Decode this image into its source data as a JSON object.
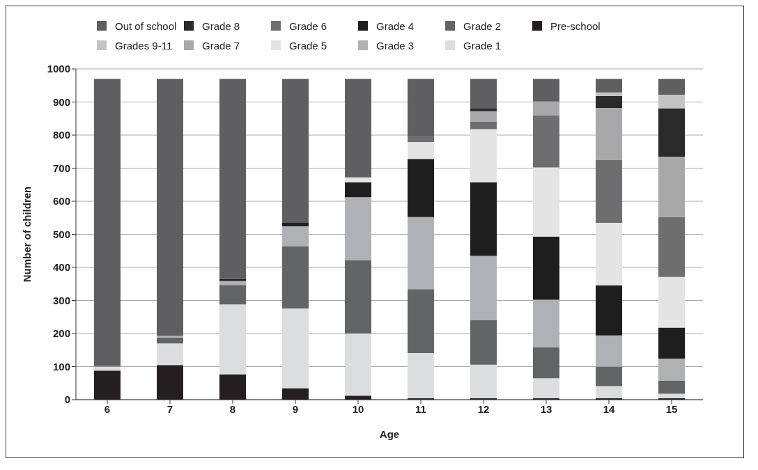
{
  "chart_data": {
    "type": "bar",
    "stacked": true,
    "xlabel": "Age",
    "ylabel": "Number of children",
    "categories": [
      "6",
      "7",
      "8",
      "9",
      "10",
      "11",
      "12",
      "13",
      "14",
      "15"
    ],
    "ylim": [
      0,
      1000
    ],
    "yticks": [
      0,
      100,
      200,
      300,
      400,
      500,
      600,
      700,
      800,
      900,
      1000
    ],
    "grid": "y",
    "legend": "top",
    "series": [
      {
        "name": "Pre-school",
        "color": "#231f20",
        "values": [
          88,
          105,
          77,
          35,
          12,
          4,
          4,
          4,
          4,
          4
        ]
      },
      {
        "name": "Grade 1",
        "color": "#dcdddf",
        "values": [
          12,
          65,
          211,
          241,
          188,
          137,
          102,
          61,
          37,
          14
        ]
      },
      {
        "name": "Grade 2",
        "color": "#636466",
        "values": [
          2,
          18,
          59,
          187,
          222,
          193,
          135,
          94,
          59,
          39
        ]
      },
      {
        "name": "Grade 3",
        "color": "#b0b1b4",
        "values": [
          0,
          5,
          12,
          61,
          190,
          218,
          194,
          143,
          94,
          67
        ]
      },
      {
        "name": "Grade 4",
        "color": "#1e1e1e",
        "values": [
          0,
          0,
          6,
          11,
          45,
          176,
          222,
          191,
          152,
          94
        ]
      },
      {
        "name": "Grade 5",
        "color": "#e4e4e4",
        "values": [
          0,
          0,
          0,
          0,
          15,
          51,
          161,
          209,
          189,
          153
        ]
      },
      {
        "name": "Grade 6",
        "color": "#6e6e70",
        "values": [
          0,
          0,
          0,
          0,
          0,
          15,
          23,
          157,
          189,
          181
        ]
      },
      {
        "name": "Grade 7",
        "color": "#a8a8aa",
        "values": [
          0,
          0,
          0,
          0,
          0,
          0,
          31,
          43,
          158,
          183
        ]
      },
      {
        "name": "Grade 8",
        "color": "#2a2a2a",
        "values": [
          0,
          0,
          0,
          0,
          0,
          0,
          8,
          3,
          36,
          146
        ]
      },
      {
        "name": "Grades 9-11",
        "color": "#c4c4c6",
        "values": [
          0,
          0,
          0,
          0,
          0,
          0,
          0,
          0,
          11,
          41
        ]
      },
      {
        "name": "Out of school",
        "color": "#5f5f61",
        "values": [
          868,
          777,
          605,
          435,
          298,
          176,
          90,
          65,
          41,
          48
        ]
      }
    ]
  }
}
